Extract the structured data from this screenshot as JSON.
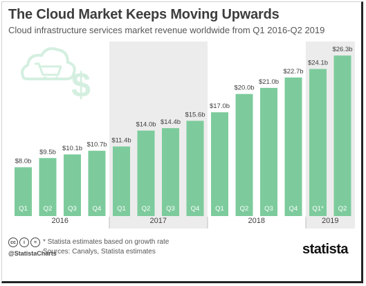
{
  "title": "The Cloud Market Keeps Moving Upwards",
  "subtitle": "Cloud infrastructure services market revenue worldwide from Q1 2016-Q2 2019",
  "footer": {
    "cc_icons": [
      "cc",
      "i",
      "="
    ],
    "handle": "@StatistaCharts",
    "note": "* Statista estimates based on growth rate",
    "sources": "Sources: Canalys, Statista estimates",
    "brand": "statista"
  },
  "colors": {
    "bar": "#7dcb9c",
    "shade": "#ececec",
    "text": "#3d3d3d",
    "illustration": "#d4efe0"
  },
  "illustration": {
    "icons": [
      "cloud-icon",
      "shopping-cart-icon",
      "dollar-sign-icon"
    ]
  },
  "chart_data": {
    "type": "bar",
    "title": "The Cloud Market Keeps Moving Upwards",
    "subtitle": "Cloud infrastructure services market revenue worldwide from Q1 2016-Q2 2019",
    "xlabel": "",
    "ylabel": "",
    "unit": "billion U.S. dollars",
    "categories": [
      "Q1",
      "Q2",
      "Q3",
      "Q4",
      "Q1",
      "Q2",
      "Q3",
      "Q4",
      "Q1",
      "Q2",
      "Q3",
      "Q4",
      "Q1*",
      "Q2"
    ],
    "values": [
      8.0,
      9.5,
      10.1,
      10.7,
      11.4,
      14.0,
      14.4,
      15.6,
      17.0,
      20.0,
      21.0,
      22.7,
      24.1,
      26.3
    ],
    "value_labels": [
      "$8.0b",
      "$9.5b",
      "$10.1b",
      "$10.7b",
      "$11.4b",
      "$14.0b",
      "$14.4b",
      "$15.6b",
      "$17.0b",
      "$20.0b",
      "$21.0b",
      "$22.7b",
      "$24.1b",
      "$26.3b"
    ],
    "groups": [
      {
        "label": "2016",
        "count": 4,
        "shaded": false
      },
      {
        "label": "2017",
        "count": 4,
        "shaded": true
      },
      {
        "label": "2018",
        "count": 4,
        "shaded": false
      },
      {
        "label": "2019",
        "count": 2,
        "shaded": true
      }
    ],
    "ylim": [
      0,
      27
    ],
    "grid": false,
    "legend": "none"
  }
}
